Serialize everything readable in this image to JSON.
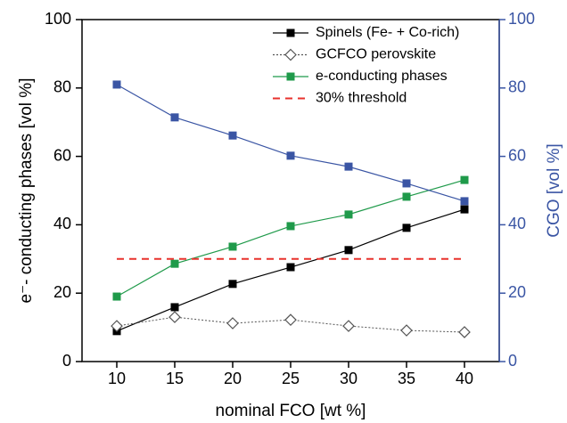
{
  "chart_data": {
    "type": "line",
    "x_label": "nominal FCO [wt %]",
    "y_label": "e⁻- conducting phases [vol %]",
    "y2_label": "CGO [vol %]",
    "x": [
      10,
      15,
      20,
      25,
      30,
      35,
      40
    ],
    "xlim": [
      7,
      43
    ],
    "xticks": [
      10,
      15,
      20,
      25,
      30,
      35,
      40
    ],
    "ylim": [
      0,
      100
    ],
    "yticks": [
      0,
      20,
      40,
      60,
      80,
      100
    ],
    "y2lim": [
      0,
      100
    ],
    "y2ticks": [
      0,
      20,
      40,
      60,
      80,
      100
    ],
    "y2_color": "#3a55a4",
    "legend": "top-right",
    "series": [
      {
        "name": "Spinels (Fe- + Co-rich)",
        "color": "#000000",
        "marker": "square",
        "line_style": "solid",
        "values": [
          8.9,
          15.9,
          22.7,
          27.6,
          32.6,
          39.1,
          44.5
        ]
      },
      {
        "name": "GCFCO perovskite",
        "color": "#555555",
        "marker": "diamond-open",
        "line_style": "dotted",
        "values": [
          10.4,
          13,
          11.2,
          12.2,
          10.4,
          9.1,
          8.6
        ]
      },
      {
        "name": "e-conducting phases",
        "color": "#1f9a4a",
        "marker": "square",
        "line_style": "solid",
        "values": [
          19,
          28.6,
          33.6,
          39.6,
          43,
          48.2,
          53.1
        ]
      },
      {
        "name": "30% threshold",
        "color": "#e8322c",
        "marker": "none",
        "line_style": "dashed",
        "values": [
          30,
          30,
          30,
          30,
          30,
          30,
          30
        ]
      },
      {
        "name": "CGO",
        "color": "#3a55a4",
        "marker": "square",
        "line_style": "solid",
        "axis": "y2",
        "legend": false,
        "values": [
          81,
          71.4,
          66.1,
          60.2,
          57,
          52.1,
          46.9
        ]
      }
    ]
  }
}
